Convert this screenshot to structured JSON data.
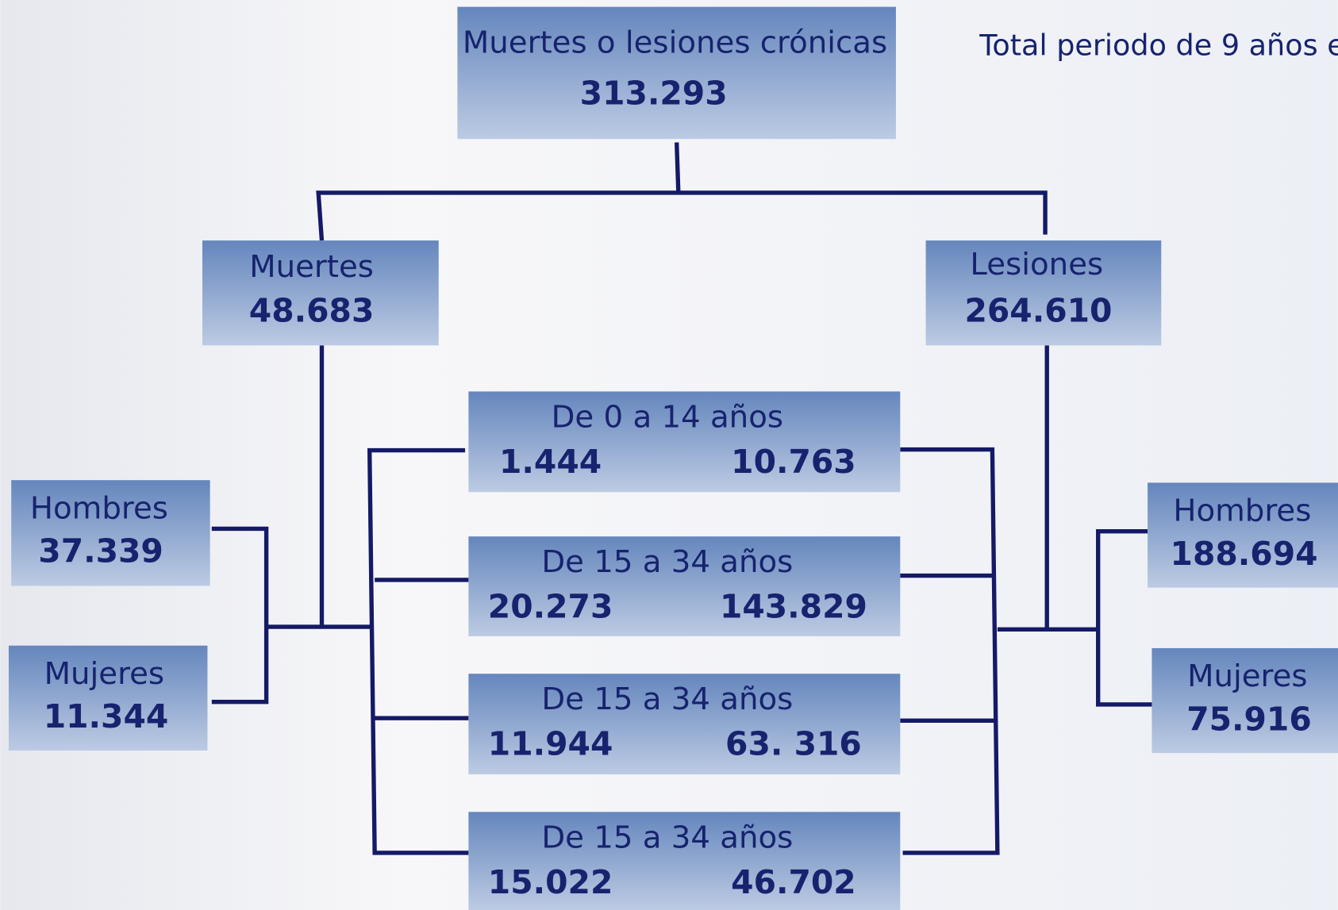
{
  "root": {
    "label": "Muertes o lesiones crónicas",
    "value": "313.293"
  },
  "note": "Total periodo de 9 años e",
  "muertes": {
    "label": "Muertes",
    "value": "48.683"
  },
  "lesiones": {
    "label": "Lesiones",
    "value": "264.610"
  },
  "age_groups": [
    {
      "label": "De 0 a 14 años",
      "muertes": "1.444",
      "lesiones": "10.763"
    },
    {
      "label": "De 15 a 34 años",
      "muertes": "20.273",
      "lesiones": "143.829"
    },
    {
      "label": "De 15 a 34 años",
      "muertes": "11.944",
      "lesiones": "63. 316"
    },
    {
      "label": "De 15 a 34 años",
      "muertes": "15.022",
      "lesiones": "46.702"
    }
  ],
  "muertes_sex": [
    {
      "label": "Hombres",
      "value": "37.339"
    },
    {
      "label": "Mujeres",
      "value": "11.344"
    }
  ],
  "lesiones_sex": [
    {
      "label": "Hombres",
      "value": "188.694"
    },
    {
      "label": "Mujeres",
      "value": "75.916"
    }
  ]
}
